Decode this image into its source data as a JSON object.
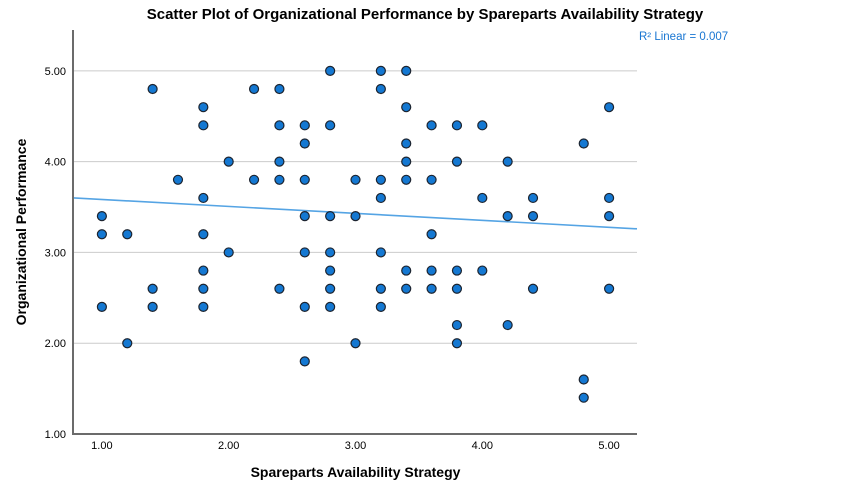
{
  "annotation": {
    "r2_label": "R² Linear = 0.007"
  },
  "colors": {
    "marker_fill": "#1478d2",
    "marker_stroke": "#1c2430",
    "trend": "#55a4e4",
    "grid": "#cbcbcb",
    "axis": "#6b6b6b",
    "annotation_text": "#1976d2",
    "title_text": "#000000"
  },
  "chart_data": {
    "type": "scatter",
    "title": "Scatter Plot of Organizational Performance by Spareparts Availability Strategy",
    "xlabel": "Spareparts Availability Strategy",
    "ylabel": "Organizational Performance",
    "r2_linear": 0.007,
    "xlim": [
      0.78,
      5.22
    ],
    "ylim": [
      1.0,
      5.45
    ],
    "grid": "horizontal-only",
    "grid_y": [
      2,
      3,
      4,
      5
    ],
    "x_tick_values": [
      1,
      2,
      3,
      4,
      5
    ],
    "x_ticks": [
      "1.00",
      "2.00",
      "3.00",
      "4.00",
      "5.00"
    ],
    "y_tick_values": [
      1,
      2,
      3,
      4,
      5
    ],
    "y_ticks": [
      "1.00",
      "2.00",
      "3.00",
      "4.00",
      "5.00"
    ],
    "trend_line": {
      "x1": 0.78,
      "y1": 3.6,
      "x2": 5.22,
      "y2": 3.26
    },
    "points": [
      [
        2.8,
        5.0
      ],
      [
        3.2,
        5.0
      ],
      [
        3.4,
        5.0
      ],
      [
        1.4,
        4.8
      ],
      [
        2.2,
        4.8
      ],
      [
        2.4,
        4.8
      ],
      [
        3.2,
        4.8
      ],
      [
        1.8,
        4.6
      ],
      [
        3.4,
        4.6
      ],
      [
        5.0,
        4.6
      ],
      [
        1.8,
        4.4
      ],
      [
        2.4,
        4.4
      ],
      [
        2.6,
        4.4
      ],
      [
        2.8,
        4.4
      ],
      [
        3.6,
        4.4
      ],
      [
        3.8,
        4.4
      ],
      [
        4.0,
        4.4
      ],
      [
        2.6,
        4.2
      ],
      [
        3.4,
        4.2
      ],
      [
        4.8,
        4.2
      ],
      [
        2.0,
        4.0
      ],
      [
        2.4,
        4.0
      ],
      [
        3.4,
        4.0
      ],
      [
        3.8,
        4.0
      ],
      [
        4.2,
        4.0
      ],
      [
        1.6,
        3.8
      ],
      [
        2.2,
        3.8
      ],
      [
        2.4,
        3.8
      ],
      [
        2.6,
        3.8
      ],
      [
        3.0,
        3.8
      ],
      [
        3.2,
        3.8
      ],
      [
        3.4,
        3.8
      ],
      [
        3.6,
        3.8
      ],
      [
        1.8,
        3.6
      ],
      [
        3.2,
        3.6
      ],
      [
        4.0,
        3.6
      ],
      [
        4.4,
        3.6
      ],
      [
        5.0,
        3.6
      ],
      [
        1.0,
        3.4
      ],
      [
        2.6,
        3.4
      ],
      [
        2.8,
        3.4
      ],
      [
        3.0,
        3.4
      ],
      [
        4.2,
        3.4
      ],
      [
        4.4,
        3.4
      ],
      [
        5.0,
        3.4
      ],
      [
        1.0,
        3.2
      ],
      [
        1.2,
        3.2
      ],
      [
        1.8,
        3.2
      ],
      [
        3.6,
        3.2
      ],
      [
        2.0,
        3.0
      ],
      [
        2.6,
        3.0
      ],
      [
        2.8,
        3.0
      ],
      [
        3.2,
        3.0
      ],
      [
        1.8,
        2.8
      ],
      [
        2.8,
        2.8
      ],
      [
        3.4,
        2.8
      ],
      [
        3.6,
        2.8
      ],
      [
        3.8,
        2.8
      ],
      [
        4.0,
        2.8
      ],
      [
        1.4,
        2.6
      ],
      [
        1.8,
        2.6
      ],
      [
        2.4,
        2.6
      ],
      [
        2.8,
        2.6
      ],
      [
        3.2,
        2.6
      ],
      [
        3.4,
        2.6
      ],
      [
        3.6,
        2.6
      ],
      [
        3.8,
        2.6
      ],
      [
        4.4,
        2.6
      ],
      [
        5.0,
        2.6
      ],
      [
        1.0,
        2.4
      ],
      [
        1.4,
        2.4
      ],
      [
        1.8,
        2.4
      ],
      [
        2.6,
        2.4
      ],
      [
        2.8,
        2.4
      ],
      [
        3.2,
        2.4
      ],
      [
        3.8,
        2.2
      ],
      [
        4.2,
        2.2
      ],
      [
        1.2,
        2.0
      ],
      [
        3.0,
        2.0
      ],
      [
        3.8,
        2.0
      ],
      [
        2.6,
        1.8
      ],
      [
        4.8,
        1.6
      ],
      [
        4.8,
        1.4
      ]
    ]
  }
}
